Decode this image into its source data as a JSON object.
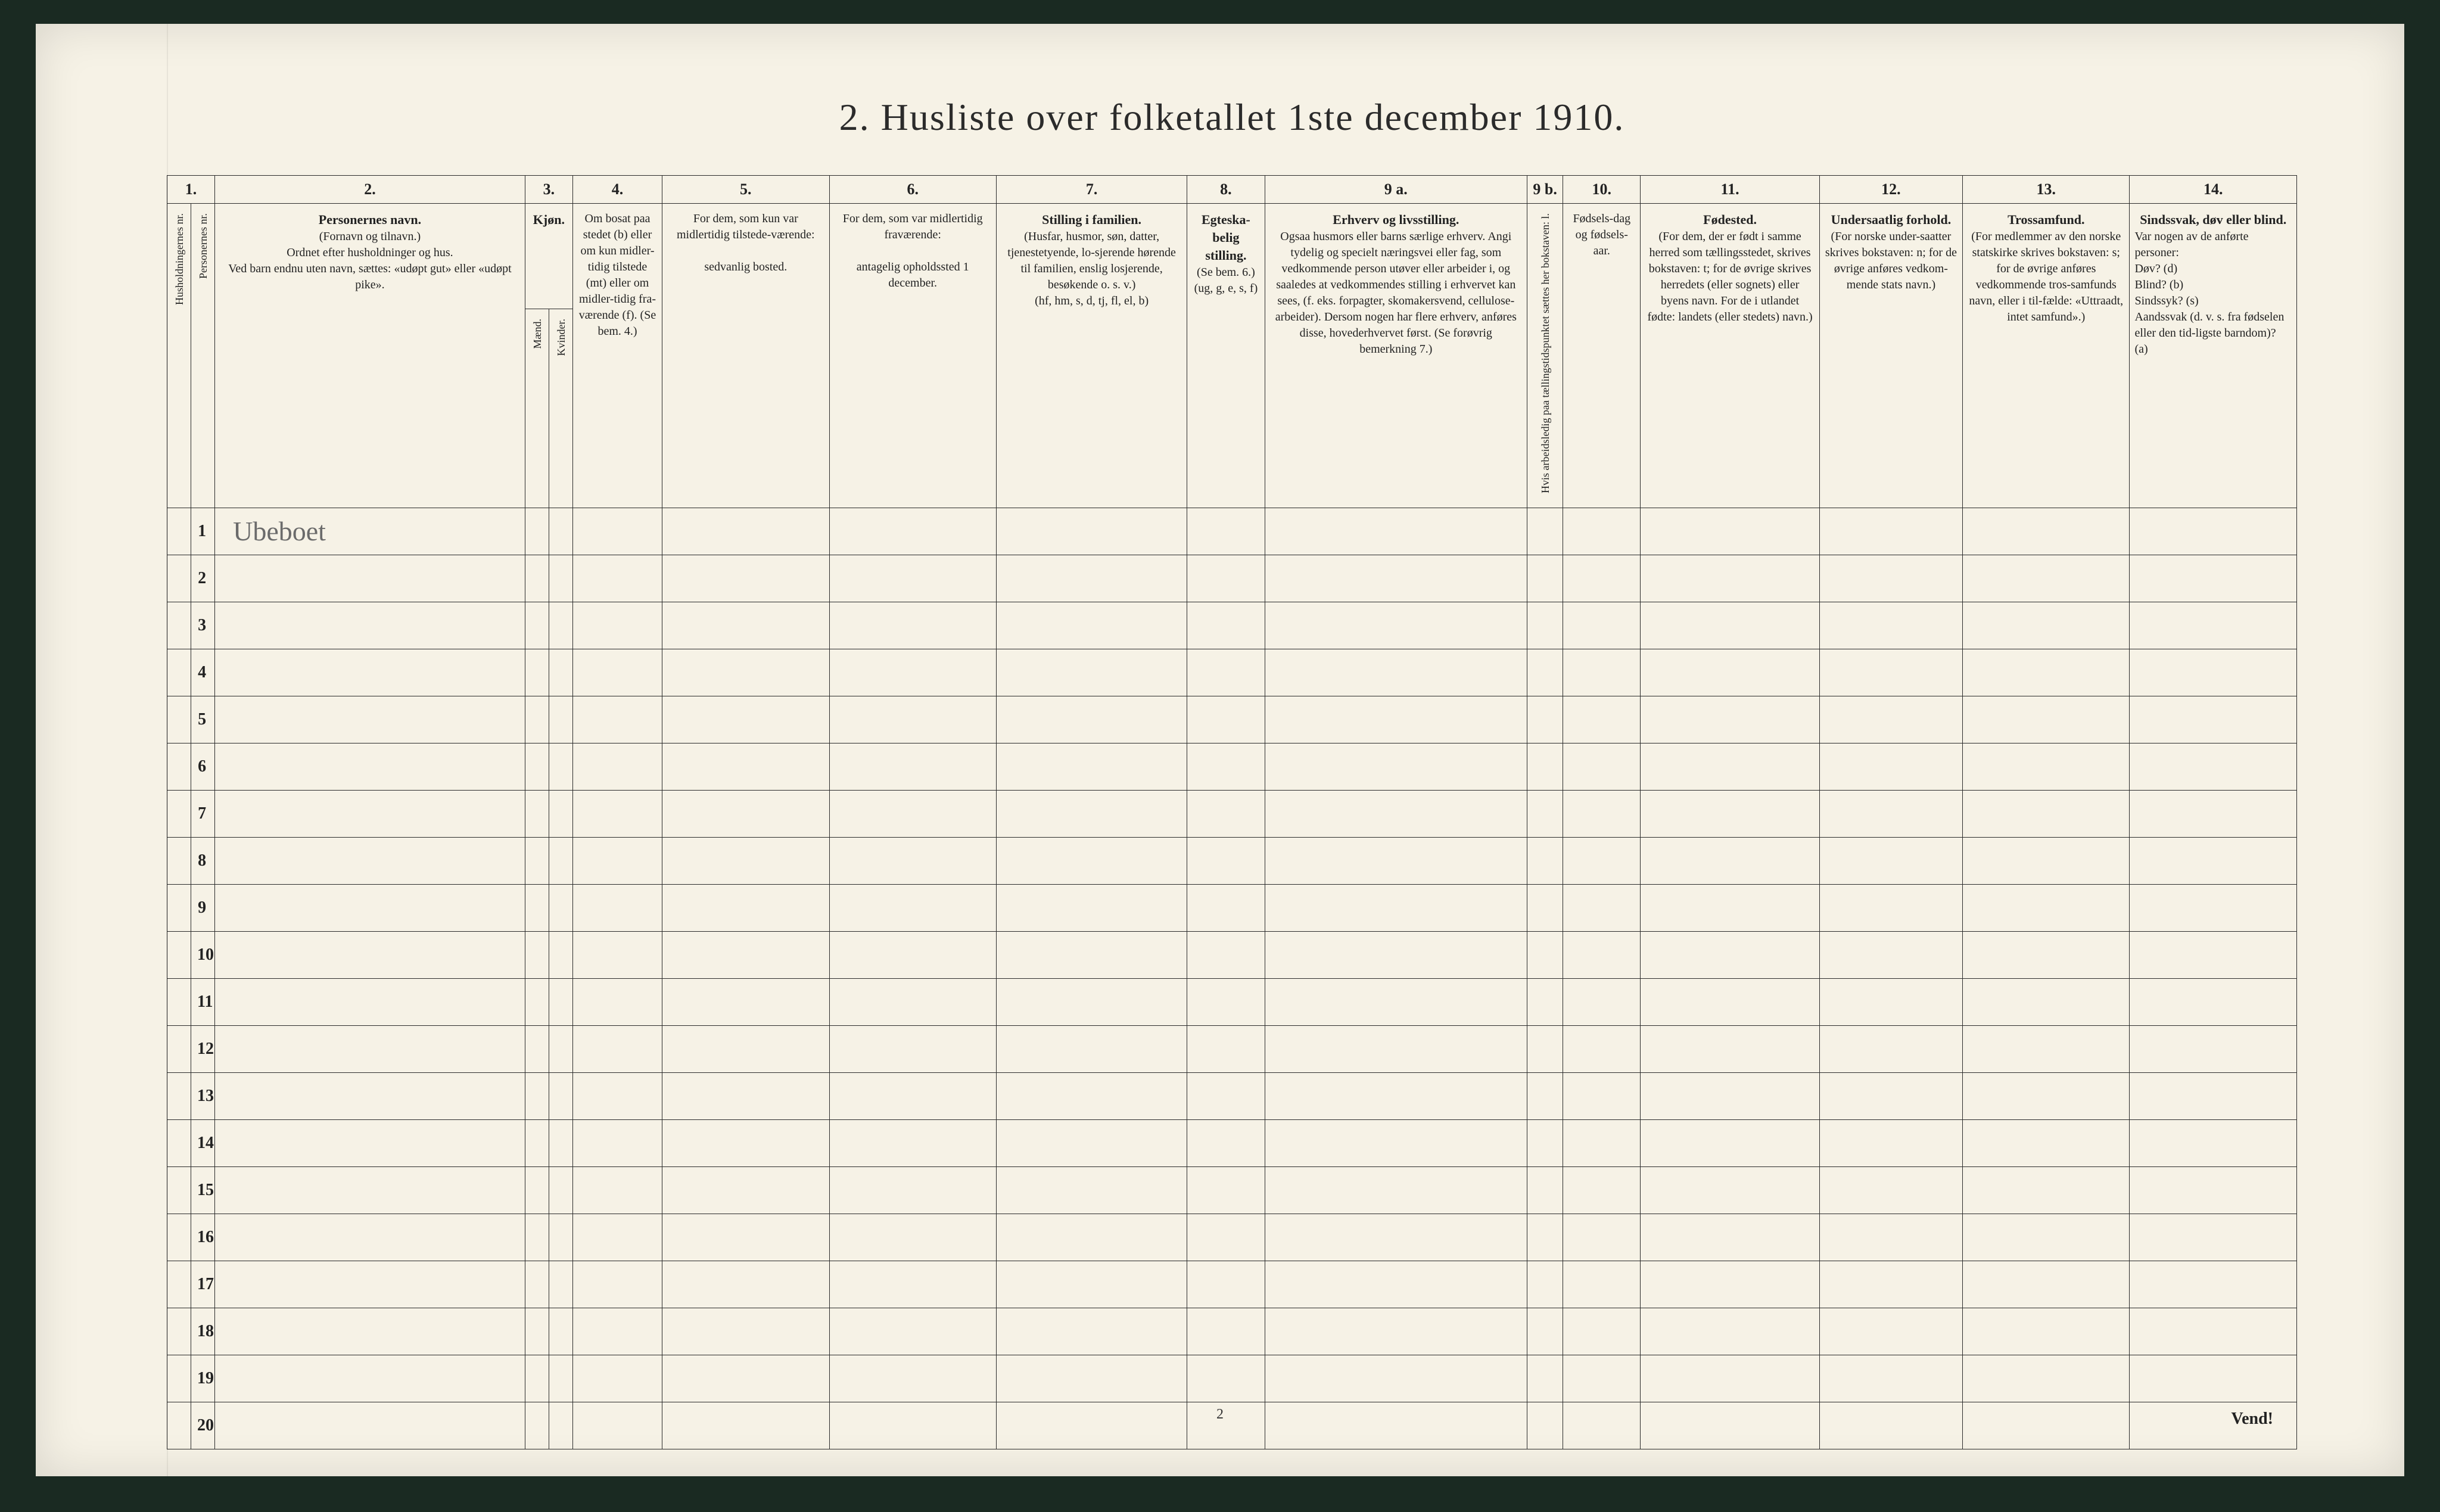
{
  "title": "2.  Husliste over folketallet 1ste december 1910.",
  "footer_page_num": "2",
  "vend_label": "Vend!",
  "handwritten_row1": "Ubeboet",
  "row_count": 20,
  "colnums": [
    "1.",
    "2.",
    "3.",
    "4.",
    "5.",
    "6.",
    "7.",
    "8.",
    "9 a.",
    "9 b.",
    "10.",
    "11.",
    "12.",
    "13.",
    "14."
  ],
  "headers": {
    "hnr": "Husholdningernes nr.",
    "pnr": "Personernes nr.",
    "name_title": "Personernes navn.",
    "name_sub": "(Fornavn og tilnavn.)\nOrdnet efter husholdninger og hus.\nVed barn endnu uten navn, sættes: «udøpt gut» eller «udøpt pike».",
    "kjon_title": "Kjøn.",
    "kjon_m": "Mænd.",
    "kjon_k": "Kvinder.",
    "bosat": "Om bosat paa stedet (b) eller om kun midler-tidig tilstede (mt) eller om midler-tidig fra-værende (f). (Se bem. 4.)",
    "midl_tilst": "For dem, som kun var midlertidig tilstede-værende:\n\nsedvanlig bosted.",
    "midl_frav": "For dem, som var midlertidig fraværende:\n\nantagelig opholdssted 1 december.",
    "familien_title": "Stilling i familien.",
    "familien_sub": "(Husfar, husmor, søn, datter, tjenestetyende, lo-sjerende hørende til familien, enslig losjerende, besøkende o. s. v.)\n(hf, hm, s, d, tj, fl, el, b)",
    "egte_title": "Egteska-belig stilling.",
    "egte_sub": "(Se bem. 6.)\n(ug, g, e, s, f)",
    "erhv_title": "Erhverv og livsstilling.",
    "erhv_sub": "Ogsaa husmors eller barns særlige erhverv. Angi tydelig og specielt næringsvei eller fag, som vedkommende person utøver eller arbeider i, og saaledes at vedkommendes stilling i erhvervet kan sees, (f. eks. forpagter, skomakersvend, cellulose-arbeider). Dersom nogen har flere erhverv, anføres disse, hovederhvervet først. (Se forøvrig bemerkning 7.)",
    "arbl": "Hvis arbeidsledig paa tællingstidspunktet sættes her bokstaven: l.",
    "faar": "Fødsels-dag og fødsels-aar.",
    "fsted_title": "Fødested.",
    "fsted_sub": "(For dem, der er født i samme herred som tællingsstedet, skrives bokstaven: t; for de øvrige skrives herredets (eller sognets) eller byens navn. For de i utlandet fødte: landets (eller stedets) navn.)",
    "und_title": "Undersaatlig forhold.",
    "und_sub": "(For norske under-saatter skrives bokstaven: n; for de øvrige anføres vedkom-mende stats navn.)",
    "tros_title": "Trossamfund.",
    "tros_sub": "(For medlemmer av den norske statskirke skrives bokstaven: s; for de øvrige anføres vedkommende tros-samfunds navn, eller i til-fælde: «Uttraadt, intet samfund».)",
    "sind_title": "Sindssvak, døv eller blind.",
    "sind_sub": "Var nogen av de anførte personer:\nDøv?        (d)\nBlind?       (b)\nSindssyk?  (s)\nAandssvak (d. v. s. fra fødselen eller den tid-ligste barndom)?  (a)"
  }
}
